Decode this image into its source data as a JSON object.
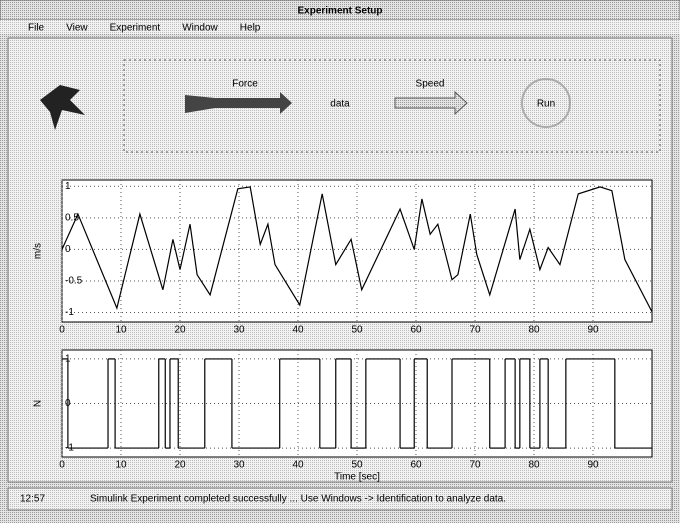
{
  "window": {
    "title": "Experiment Setup"
  },
  "menu": [
    "File",
    "View",
    "Experiment",
    "Window",
    "Help"
  ],
  "toolbar": {
    "force_label": "Force",
    "data_label": "data",
    "speed_label": "Speed",
    "run_label": "Run"
  },
  "plots": [
    {
      "type": "line",
      "ylabel": "m/s",
      "x": [
        0,
        2.7,
        9.3,
        13.2,
        17.1,
        18.8,
        20.0,
        21.7,
        22.9,
        25.1,
        29.8,
        31.9,
        33.6,
        34.9,
        36.1,
        40.3,
        44.1,
        46.4,
        49.0,
        50.8,
        57.3,
        59.7,
        61.0,
        62.4,
        63.7,
        66.1,
        67.1,
        69.2,
        70.3,
        72.5,
        76.8,
        77.6,
        79.3,
        81.0,
        82.4,
        84.4,
        87.5,
        91.2,
        93.2,
        95.4,
        100
      ],
      "values": [
        0,
        0.56,
        -0.93,
        0.56,
        -0.64,
        0.16,
        -0.32,
        0.4,
        -0.4,
        -0.72,
        0.96,
        0.99,
        0.08,
        0.4,
        -0.24,
        -0.88,
        0.88,
        -0.24,
        0.16,
        -0.64,
        0.64,
        0,
        0.8,
        0.24,
        0.4,
        -0.48,
        -0.4,
        0.56,
        -0.08,
        -0.72,
        0.64,
        -0.16,
        0.32,
        -0.32,
        0.03,
        -0.24,
        0.88,
        0.99,
        0.93,
        -0.16,
        -0.99
      ],
      "color": "#000000",
      "xlim": [
        0,
        100
      ],
      "ylim": [
        -1.15,
        1.1
      ],
      "xticks": [
        0,
        10,
        20,
        30,
        40,
        50,
        60,
        70,
        80,
        90
      ],
      "yticks": [
        1,
        0.5,
        0,
        -0.5,
        -1
      ],
      "grid": true
    },
    {
      "type": "step",
      "ylabel": "N",
      "xlabel": "Time [sec]",
      "x": [
        0,
        1.0,
        7.8,
        9.0,
        16.4,
        17.5,
        18.3,
        19.7,
        24.2,
        28.8,
        36.9,
        43.7,
        46.4,
        49.0,
        51.5,
        57.3,
        59.7,
        61.9,
        66.1,
        72.5,
        75.1,
        76.8,
        77.6,
        79.3,
        81.0,
        82.4,
        85.4,
        93.7
      ],
      "values": [
        1,
        -1,
        1,
        -1,
        1,
        -1,
        1,
        -1,
        1,
        -1,
        1,
        -1,
        1,
        -1,
        1,
        -1,
        1,
        -1,
        1,
        -1,
        1,
        -1,
        1,
        -1,
        1,
        -1,
        1,
        -1
      ],
      "color": "#000000",
      "xlim": [
        0,
        100
      ],
      "ylim": [
        -1.2,
        1.2
      ],
      "xticks": [
        0,
        10,
        20,
        30,
        40,
        50,
        60,
        70,
        80,
        90
      ],
      "yticks": [
        -1,
        0,
        1
      ],
      "grid": true
    }
  ],
  "status": {
    "time": "12:57",
    "message": "Simulink Experiment completed successfully ... Use Windows -> Identification to analyze data."
  }
}
